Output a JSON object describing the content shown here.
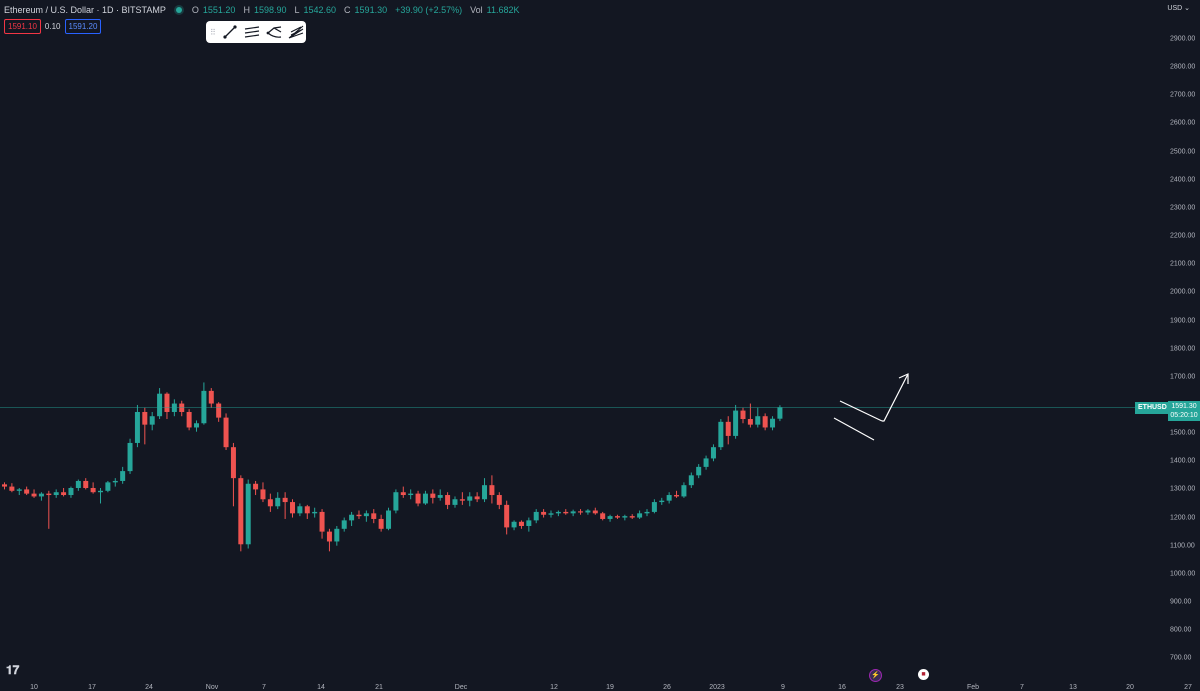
{
  "header": {
    "symbol_title": "Ethereum / U.S. Dollar · 1D · BITSTAMP",
    "open_label": "O",
    "open": "1551.20",
    "high_label": "H",
    "high": "1598.90",
    "low_label": "L",
    "low": "1542.60",
    "close_label": "C",
    "close": "1591.30",
    "change": "+39.90 (+2.57%)",
    "vol_label": "Vol",
    "vol": "11.682K"
  },
  "trade": {
    "sell": "1591.10",
    "spread": "0.10",
    "buy": "1591.20"
  },
  "toolbar": {
    "icons": [
      "drag-grip-icon",
      "trend-line-icon",
      "parallel-channel-icon",
      "pitchfork-icon",
      "fib-fan-icon"
    ]
  },
  "currency": "USD",
  "price_axis": {
    "ticks": [
      "2900.00",
      "2800.00",
      "2700.00",
      "2600.00",
      "2500.00",
      "2400.00",
      "2300.00",
      "2200.00",
      "2100.00",
      "2000.00",
      "1900.00",
      "1800.00",
      "1700.00",
      "1600.00",
      "1500.00",
      "1400.00",
      "1300.00",
      "1200.00",
      "1100.00",
      "1000.00",
      "900.00",
      "800.00",
      "700.00"
    ],
    "current_symbol": "ETHUSD",
    "current_price": "1591.30",
    "countdown": "05:20:10"
  },
  "time_axis": {
    "ticks": [
      "10",
      "17",
      "24",
      "Nov",
      "7",
      "14",
      "21",
      "Dec",
      "12",
      "19",
      "26",
      "2023",
      "9",
      "16",
      "23",
      "Feb",
      "7",
      "13",
      "20",
      "27"
    ]
  },
  "colors": {
    "up": "#26a69a",
    "down": "#ef5350",
    "background": "#131722"
  },
  "events": [
    "lightning-event-icon",
    "us-flag-event-icon"
  ],
  "chart_data": {
    "type": "candlestick",
    "symbol": "ETHUSD",
    "interval": "1D",
    "ylim": [
      650,
      2980
    ],
    "candles": [
      [
        1318,
        1325,
        1300,
        1310
      ],
      [
        1310,
        1322,
        1290,
        1295
      ],
      [
        1295,
        1305,
        1280,
        1300
      ],
      [
        1300,
        1310,
        1280,
        1285
      ],
      [
        1285,
        1300,
        1270,
        1275
      ],
      [
        1275,
        1290,
        1260,
        1285
      ],
      [
        1285,
        1295,
        1160,
        1280
      ],
      [
        1280,
        1300,
        1270,
        1290
      ],
      [
        1290,
        1305,
        1275,
        1280
      ],
      [
        1280,
        1310,
        1270,
        1305
      ],
      [
        1305,
        1335,
        1295,
        1330
      ],
      [
        1330,
        1340,
        1300,
        1305
      ],
      [
        1305,
        1325,
        1285,
        1290
      ],
      [
        1290,
        1305,
        1250,
        1295
      ],
      [
        1295,
        1330,
        1290,
        1325
      ],
      [
        1325,
        1340,
        1310,
        1330
      ],
      [
        1330,
        1380,
        1320,
        1365
      ],
      [
        1365,
        1480,
        1355,
        1465
      ],
      [
        1465,
        1600,
        1450,
        1575
      ],
      [
        1575,
        1590,
        1460,
        1530
      ],
      [
        1530,
        1575,
        1510,
        1560
      ],
      [
        1560,
        1660,
        1550,
        1640
      ],
      [
        1640,
        1645,
        1550,
        1575
      ],
      [
        1575,
        1620,
        1560,
        1605
      ],
      [
        1605,
        1615,
        1560,
        1575
      ],
      [
        1575,
        1585,
        1510,
        1520
      ],
      [
        1520,
        1545,
        1505,
        1535
      ],
      [
        1535,
        1680,
        1530,
        1650
      ],
      [
        1650,
        1660,
        1590,
        1605
      ],
      [
        1605,
        1610,
        1540,
        1555
      ],
      [
        1555,
        1570,
        1440,
        1450
      ],
      [
        1450,
        1465,
        1240,
        1340
      ],
      [
        1340,
        1350,
        1080,
        1105
      ],
      [
        1105,
        1335,
        1090,
        1320
      ],
      [
        1320,
        1330,
        1280,
        1300
      ],
      [
        1300,
        1325,
        1255,
        1265
      ],
      [
        1265,
        1285,
        1220,
        1240
      ],
      [
        1240,
        1290,
        1230,
        1270
      ],
      [
        1270,
        1290,
        1195,
        1255
      ],
      [
        1255,
        1265,
        1200,
        1215
      ],
      [
        1215,
        1250,
        1205,
        1240
      ],
      [
        1240,
        1245,
        1195,
        1215
      ],
      [
        1215,
        1235,
        1200,
        1220
      ],
      [
        1220,
        1230,
        1125,
        1150
      ],
      [
        1150,
        1160,
        1080,
        1115
      ],
      [
        1115,
        1170,
        1100,
        1160
      ],
      [
        1160,
        1200,
        1150,
        1190
      ],
      [
        1190,
        1220,
        1170,
        1210
      ],
      [
        1210,
        1225,
        1195,
        1205
      ],
      [
        1205,
        1225,
        1185,
        1215
      ],
      [
        1215,
        1230,
        1180,
        1195
      ],
      [
        1195,
        1210,
        1150,
        1160
      ],
      [
        1160,
        1235,
        1155,
        1225
      ],
      [
        1225,
        1300,
        1215,
        1290
      ],
      [
        1290,
        1310,
        1270,
        1280
      ],
      [
        1280,
        1300,
        1265,
        1285
      ],
      [
        1285,
        1295,
        1240,
        1250
      ],
      [
        1250,
        1295,
        1245,
        1285
      ],
      [
        1285,
        1300,
        1250,
        1270
      ],
      [
        1270,
        1300,
        1260,
        1280
      ],
      [
        1280,
        1290,
        1230,
        1245
      ],
      [
        1245,
        1275,
        1235,
        1265
      ],
      [
        1265,
        1290,
        1245,
        1260
      ],
      [
        1260,
        1290,
        1240,
        1275
      ],
      [
        1275,
        1290,
        1255,
        1265
      ],
      [
        1265,
        1340,
        1255,
        1315
      ],
      [
        1315,
        1350,
        1250,
        1280
      ],
      [
        1280,
        1290,
        1230,
        1245
      ],
      [
        1245,
        1260,
        1140,
        1165
      ],
      [
        1165,
        1190,
        1155,
        1185
      ],
      [
        1185,
        1190,
        1160,
        1170
      ],
      [
        1170,
        1200,
        1150,
        1190
      ],
      [
        1190,
        1230,
        1180,
        1220
      ],
      [
        1220,
        1230,
        1200,
        1210
      ],
      [
        1210,
        1225,
        1200,
        1215
      ],
      [
        1215,
        1225,
        1205,
        1220
      ],
      [
        1220,
        1230,
        1210,
        1215
      ],
      [
        1215,
        1228,
        1205,
        1222
      ],
      [
        1222,
        1230,
        1210,
        1218
      ],
      [
        1218,
        1230,
        1210,
        1225
      ],
      [
        1225,
        1235,
        1210,
        1215
      ],
      [
        1215,
        1220,
        1190,
        1195
      ],
      [
        1195,
        1210,
        1185,
        1205
      ],
      [
        1205,
        1210,
        1195,
        1200
      ],
      [
        1200,
        1210,
        1190,
        1205
      ],
      [
        1205,
        1212,
        1195,
        1200
      ],
      [
        1200,
        1225,
        1195,
        1215
      ],
      [
        1215,
        1230,
        1205,
        1220
      ],
      [
        1220,
        1265,
        1215,
        1255
      ],
      [
        1255,
        1270,
        1245,
        1260
      ],
      [
        1260,
        1290,
        1250,
        1280
      ],
      [
        1280,
        1295,
        1270,
        1275
      ],
      [
        1275,
        1325,
        1270,
        1315
      ],
      [
        1315,
        1360,
        1305,
        1350
      ],
      [
        1350,
        1390,
        1340,
        1380
      ],
      [
        1380,
        1420,
        1370,
        1410
      ],
      [
        1410,
        1460,
        1400,
        1450
      ],
      [
        1450,
        1550,
        1440,
        1540
      ],
      [
        1540,
        1560,
        1460,
        1490
      ],
      [
        1490,
        1600,
        1480,
        1580
      ],
      [
        1580,
        1590,
        1535,
        1550
      ],
      [
        1550,
        1605,
        1520,
        1530
      ],
      [
        1530,
        1590,
        1520,
        1560
      ],
      [
        1560,
        1570,
        1510,
        1520
      ],
      [
        1520,
        1560,
        1510,
        1551
      ],
      [
        1551.2,
        1598.9,
        1542.6,
        1591.3
      ]
    ],
    "current_price": 1591.3
  }
}
